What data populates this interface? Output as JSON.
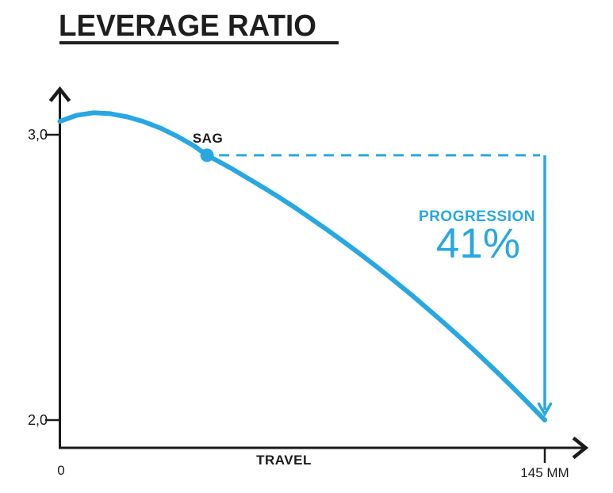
{
  "colors": {
    "accent_blue": "#29A7E0",
    "ink": "#1B1B1B"
  },
  "chart_data": {
    "type": "line",
    "title": "LEVERAGE RATIO",
    "xlabel": "TRAVEL",
    "ylabel": "",
    "grid": false,
    "legend": false,
    "x_ticks": [
      {
        "label": "0",
        "value": 0
      },
      {
        "label": "145 MM",
        "value": 145
      }
    ],
    "y_ticks": [
      {
        "label": "3,0",
        "value": 3.0
      },
      {
        "label": "2,0",
        "value": 2.0
      }
    ],
    "series": [
      {
        "name": "leverage_ratio",
        "color": "#29A7E0",
        "x_mm": [
          0,
          5,
          10,
          15,
          20,
          25,
          30,
          35,
          40,
          44,
          48,
          52,
          56,
          60,
          65,
          70,
          75,
          80,
          85,
          90,
          95,
          100,
          105,
          110,
          115,
          120,
          125,
          130,
          135,
          140,
          145
        ],
        "y_ratio": [
          3.047,
          3.068,
          3.077,
          3.074,
          3.063,
          3.046,
          3.024,
          2.995,
          2.962,
          2.928,
          2.903,
          2.877,
          2.849,
          2.821,
          2.785,
          2.747,
          2.707,
          2.666,
          2.624,
          2.58,
          2.535,
          2.488,
          2.44,
          2.39,
          2.339,
          2.286,
          2.232,
          2.176,
          2.119,
          2.06,
          2.0
        ]
      }
    ],
    "annotations": {
      "sag_point": {
        "label": "SAG",
        "x_mm": 44,
        "y_ratio": 2.928
      },
      "progression": {
        "label": "PROGRESSION",
        "value": "41%"
      }
    }
  }
}
